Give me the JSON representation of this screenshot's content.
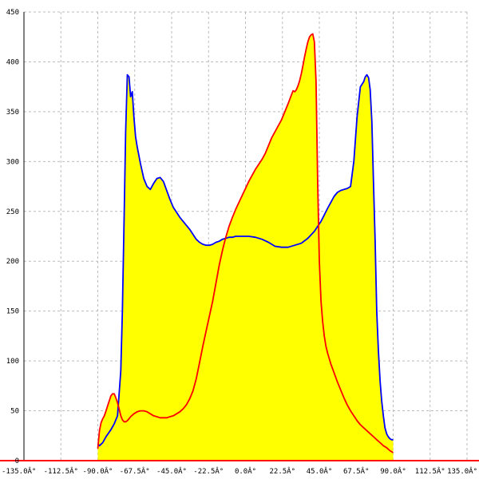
{
  "chart_data": {
    "type": "area",
    "title": "",
    "xlabel": "",
    "ylabel": "",
    "xlim": [
      -135,
      135
    ],
    "ylim": [
      0,
      450
    ],
    "grid": true,
    "x_ticks": [
      {
        "v": -135,
        "label": "-135.0Â°"
      },
      {
        "v": -112.5,
        "label": "-112.5Â°"
      },
      {
        "v": -90,
        "label": "-90.0Â°"
      },
      {
        "v": -67.5,
        "label": "-67.5Â°"
      },
      {
        "v": -45,
        "label": "-45.0Â°"
      },
      {
        "v": -22.5,
        "label": "-22.5Â°"
      },
      {
        "v": 0,
        "label": "0.0Â°"
      },
      {
        "v": 22.5,
        "label": "22.5Â°"
      },
      {
        "v": 45,
        "label": "45.0Â°"
      },
      {
        "v": 67.5,
        "label": "67.5Â°"
      },
      {
        "v": 90,
        "label": "90.0Â°"
      },
      {
        "v": 112.5,
        "label": "112.5Â°"
      },
      {
        "v": 135,
        "label": "135.0Â°"
      }
    ],
    "y_ticks": [
      {
        "v": 0,
        "label": "0"
      },
      {
        "v": 50,
        "label": "50"
      },
      {
        "v": 100,
        "label": "100"
      },
      {
        "v": 150,
        "label": "150"
      },
      {
        "v": 200,
        "label": "200"
      },
      {
        "v": 250,
        "label": "250"
      },
      {
        "v": 300,
        "label": "300"
      },
      {
        "v": 350,
        "label": "350"
      },
      {
        "v": 400,
        "label": "400"
      },
      {
        "v": 450,
        "label": "450"
      }
    ],
    "fill_color": "#ffff00",
    "series": [
      {
        "color": "#0000ff",
        "points": [
          [
            -90,
            0
          ],
          [
            -90,
            17
          ],
          [
            -89,
            15
          ],
          [
            -87,
            18
          ],
          [
            -85,
            24
          ],
          [
            -82,
            31
          ],
          [
            -80,
            37
          ],
          [
            -78,
            45
          ],
          [
            -76,
            90
          ],
          [
            -75,
            150
          ],
          [
            -74,
            240
          ],
          [
            -73,
            330
          ],
          [
            -72,
            387
          ],
          [
            -71,
            385
          ],
          [
            -70,
            365
          ],
          [
            -69,
            370
          ],
          [
            -68,
            345
          ],
          [
            -67,
            325
          ],
          [
            -66,
            315
          ],
          [
            -64,
            298
          ],
          [
            -62,
            283
          ],
          [
            -60,
            275
          ],
          [
            -58,
            272
          ],
          [
            -56,
            278
          ],
          [
            -54,
            283
          ],
          [
            -52,
            284
          ],
          [
            -50,
            280
          ],
          [
            -48,
            271
          ],
          [
            -46,
            262
          ],
          [
            -44,
            254
          ],
          [
            -42,
            249
          ],
          [
            -40,
            244
          ],
          [
            -38,
            240
          ],
          [
            -36,
            236
          ],
          [
            -34,
            232
          ],
          [
            -32,
            227
          ],
          [
            -30,
            222
          ],
          [
            -28,
            219
          ],
          [
            -26,
            217
          ],
          [
            -24,
            216
          ],
          [
            -22,
            216
          ],
          [
            -20,
            217
          ],
          [
            -18,
            219
          ],
          [
            -16,
            220
          ],
          [
            -14,
            222
          ],
          [
            -12,
            223
          ],
          [
            -10,
            224
          ],
          [
            -8,
            224
          ],
          [
            -6,
            225
          ],
          [
            -2,
            225
          ],
          [
            2,
            225
          ],
          [
            6,
            224
          ],
          [
            10,
            222
          ],
          [
            14,
            219
          ],
          [
            18,
            215
          ],
          [
            22,
            214
          ],
          [
            26,
            214
          ],
          [
            30,
            216
          ],
          [
            34,
            218
          ],
          [
            38,
            223
          ],
          [
            42,
            230
          ],
          [
            46,
            240
          ],
          [
            50,
            253
          ],
          [
            54,
            265
          ],
          [
            56,
            269
          ],
          [
            58,
            271
          ],
          [
            60,
            272
          ],
          [
            62,
            273
          ],
          [
            64,
            275
          ],
          [
            66,
            300
          ],
          [
            68,
            345
          ],
          [
            70,
            375
          ],
          [
            72,
            380
          ],
          [
            73,
            385
          ],
          [
            74,
            387
          ],
          [
            75,
            384
          ],
          [
            76,
            372
          ],
          [
            77,
            340
          ],
          [
            78,
            280
          ],
          [
            79,
            220
          ],
          [
            80,
            150
          ],
          [
            81,
            110
          ],
          [
            82,
            80
          ],
          [
            83,
            60
          ],
          [
            84,
            45
          ],
          [
            85,
            33
          ],
          [
            86,
            27
          ],
          [
            87,
            24
          ],
          [
            88,
            22
          ],
          [
            89,
            21
          ],
          [
            90,
            21
          ],
          [
            90,
            0
          ]
        ]
      },
      {
        "color": "#ff0000",
        "points": [
          [
            -90,
            0
          ],
          [
            -90,
            12
          ],
          [
            -89,
            30
          ],
          [
            -88,
            38
          ],
          [
            -87,
            42
          ],
          [
            -86,
            45
          ],
          [
            -85,
            50
          ],
          [
            -84,
            55
          ],
          [
            -83,
            60
          ],
          [
            -82,
            65
          ],
          [
            -81,
            67
          ],
          [
            -80,
            67
          ],
          [
            -79,
            63
          ],
          [
            -78,
            58
          ],
          [
            -77,
            52
          ],
          [
            -76,
            45
          ],
          [
            -75,
            41
          ],
          [
            -74,
            39
          ],
          [
            -73,
            39
          ],
          [
            -72,
            40
          ],
          [
            -71,
            42
          ],
          [
            -70,
            44
          ],
          [
            -68,
            47
          ],
          [
            -66,
            49
          ],
          [
            -64,
            50
          ],
          [
            -62,
            50
          ],
          [
            -60,
            49
          ],
          [
            -58,
            47
          ],
          [
            -56,
            45
          ],
          [
            -54,
            44
          ],
          [
            -52,
            43
          ],
          [
            -50,
            43
          ],
          [
            -48,
            43
          ],
          [
            -46,
            44
          ],
          [
            -44,
            45
          ],
          [
            -42,
            47
          ],
          [
            -40,
            49
          ],
          [
            -38,
            52
          ],
          [
            -36,
            56
          ],
          [
            -34,
            62
          ],
          [
            -32,
            70
          ],
          [
            -30,
            82
          ],
          [
            -28,
            98
          ],
          [
            -26,
            115
          ],
          [
            -24,
            130
          ],
          [
            -22,
            145
          ],
          [
            -20,
            160
          ],
          [
            -18,
            178
          ],
          [
            -16,
            196
          ],
          [
            -14,
            211
          ],
          [
            -12,
            224
          ],
          [
            -10,
            235
          ],
          [
            -8,
            244
          ],
          [
            -6,
            252
          ],
          [
            -4,
            259
          ],
          [
            -2,
            266
          ],
          [
            0,
            273
          ],
          [
            2,
            280
          ],
          [
            4,
            286
          ],
          [
            6,
            292
          ],
          [
            8,
            297
          ],
          [
            10,
            302
          ],
          [
            12,
            308
          ],
          [
            14,
            316
          ],
          [
            16,
            324
          ],
          [
            18,
            330
          ],
          [
            20,
            336
          ],
          [
            22,
            342
          ],
          [
            24,
            350
          ],
          [
            26,
            358
          ],
          [
            28,
            367
          ],
          [
            29,
            371
          ],
          [
            30,
            370
          ],
          [
            31,
            372
          ],
          [
            32,
            376
          ],
          [
            33,
            381
          ],
          [
            34,
            388
          ],
          [
            35,
            396
          ],
          [
            36,
            405
          ],
          [
            37,
            413
          ],
          [
            38,
            420
          ],
          [
            39,
            425
          ],
          [
            40,
            427
          ],
          [
            41,
            428
          ],
          [
            42,
            420
          ],
          [
            43,
            380
          ],
          [
            44,
            280
          ],
          [
            45,
            200
          ],
          [
            46,
            160
          ],
          [
            47,
            140
          ],
          [
            48,
            125
          ],
          [
            49,
            115
          ],
          [
            50,
            108
          ],
          [
            52,
            97
          ],
          [
            54,
            88
          ],
          [
            56,
            79
          ],
          [
            58,
            71
          ],
          [
            60,
            63
          ],
          [
            62,
            56
          ],
          [
            64,
            50
          ],
          [
            66,
            45
          ],
          [
            68,
            40
          ],
          [
            70,
            36
          ],
          [
            72,
            33
          ],
          [
            74,
            30
          ],
          [
            76,
            27
          ],
          [
            78,
            24
          ],
          [
            80,
            21
          ],
          [
            82,
            18
          ],
          [
            84,
            15
          ],
          [
            86,
            13
          ],
          [
            88,
            10
          ],
          [
            90,
            8
          ],
          [
            90,
            0
          ]
        ]
      }
    ]
  }
}
